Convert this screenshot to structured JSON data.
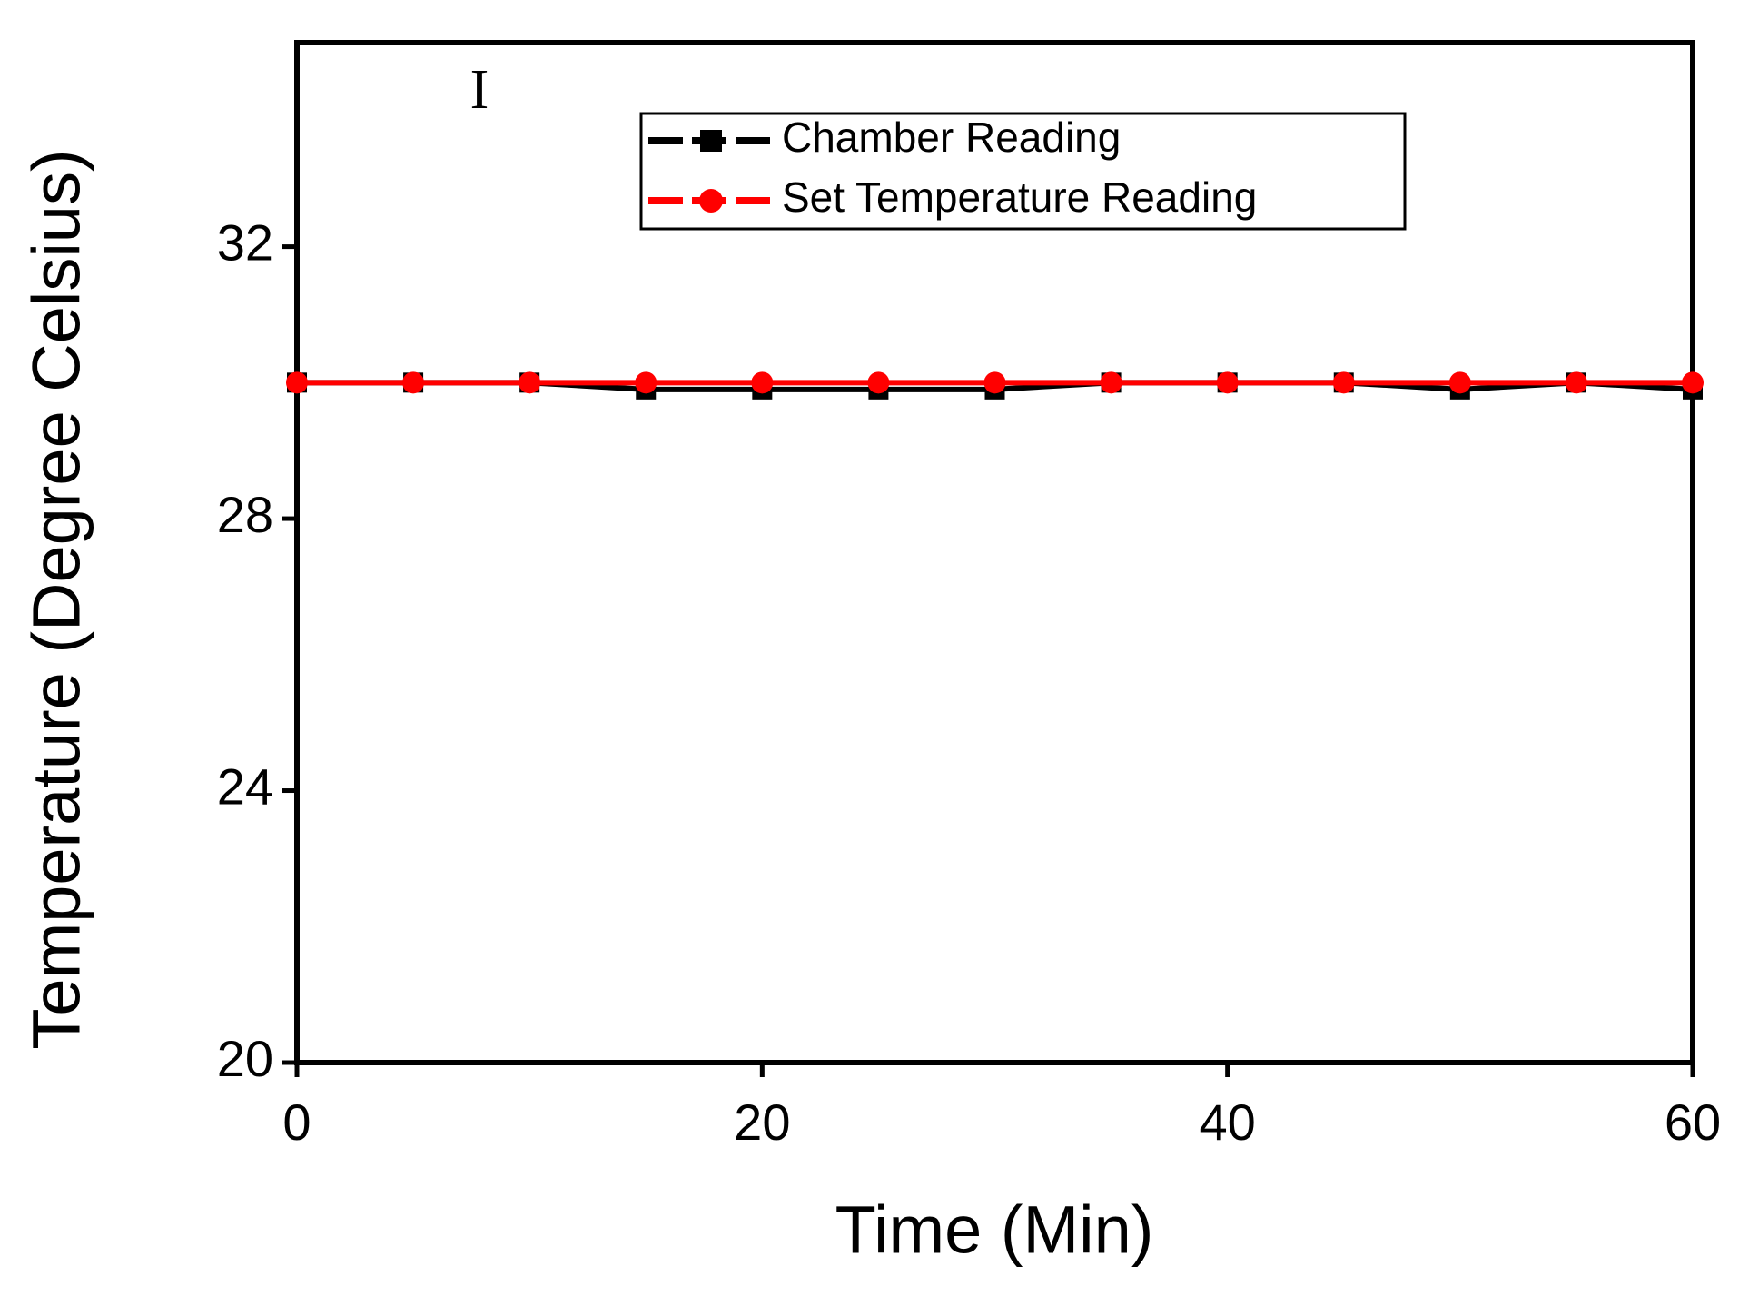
{
  "chart_data": {
    "type": "line",
    "x_label": "Time (Min)",
    "y_label": "Temperature (Degree Celsius)",
    "x": [
      0,
      5,
      10,
      15,
      20,
      25,
      30,
      35,
      40,
      45,
      50,
      55,
      60
    ],
    "series": [
      {
        "name": "Chamber Reading",
        "color": "#000000",
        "marker": "square",
        "values": [
          30,
          30,
          30,
          29.9,
          29.9,
          29.9,
          29.9,
          30,
          30,
          30,
          29.9,
          30,
          29.9
        ]
      },
      {
        "name": "Set Temperature Reading",
        "color": "#ff0000",
        "marker": "circle",
        "values": [
          30,
          30,
          30,
          30,
          30,
          30,
          30,
          30,
          30,
          30,
          30,
          30,
          30
        ]
      }
    ],
    "annotations": [
      "I"
    ],
    "xlim": [
      0,
      60
    ],
    "xticks": [
      0,
      20,
      40,
      60
    ],
    "ylim": [
      20,
      35
    ],
    "yticks": [
      20,
      24,
      28,
      32
    ],
    "legend": "top-right"
  }
}
